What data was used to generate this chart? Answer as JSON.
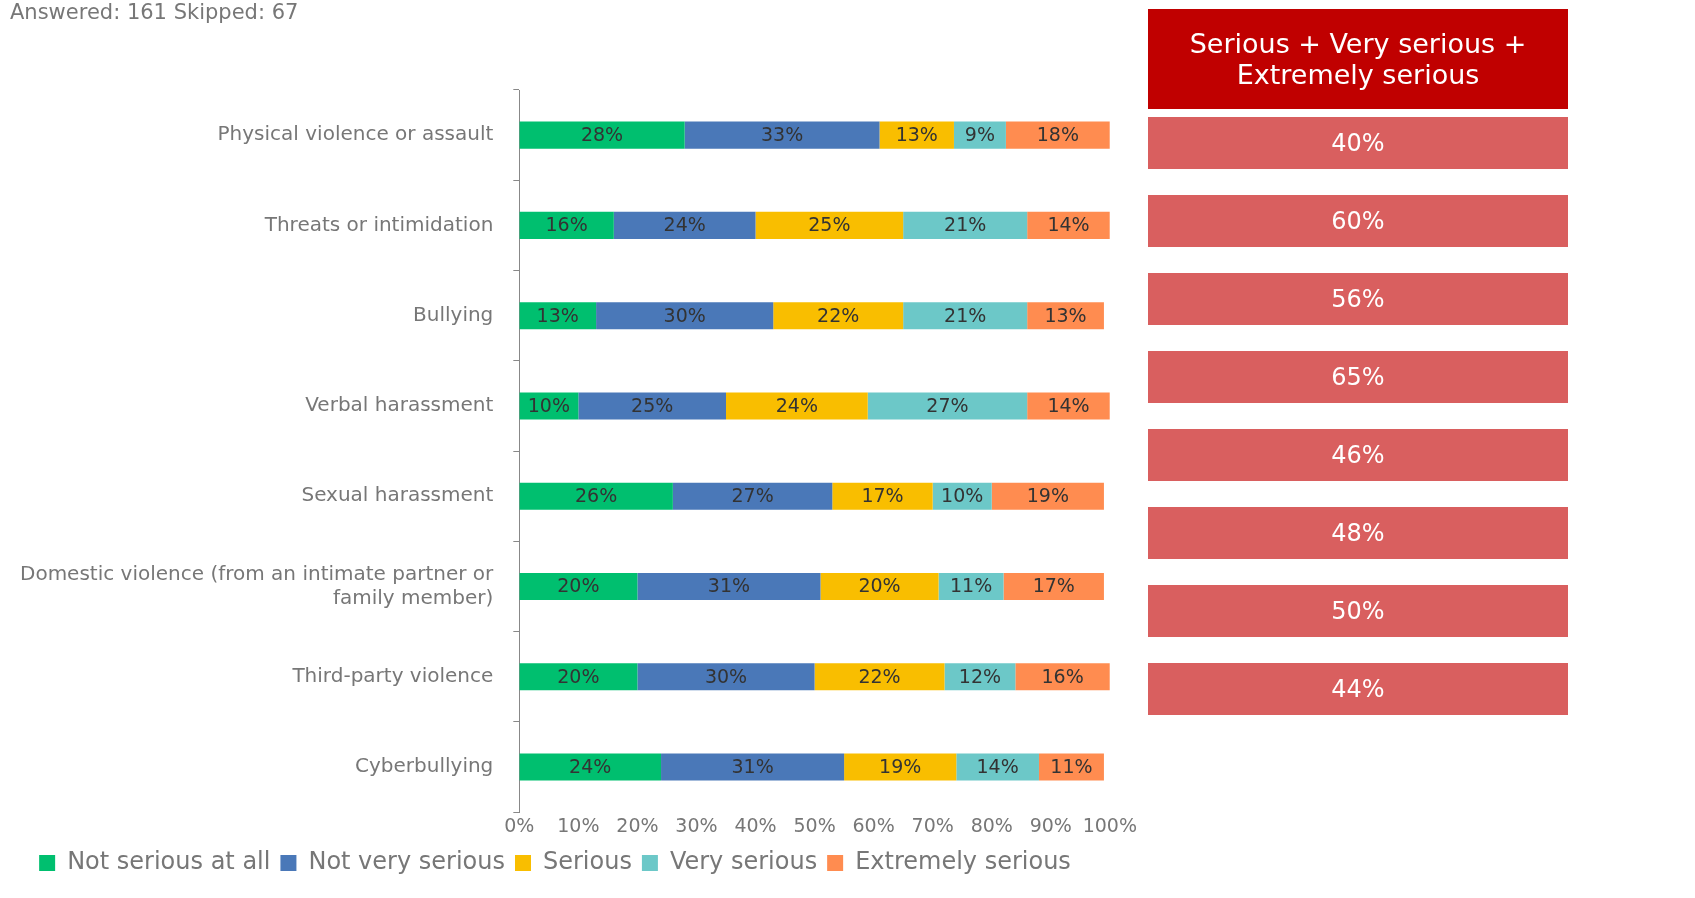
{
  "chart_data": [
    {
      "type": "bar",
      "orientation": "horizontal",
      "stacked": true,
      "subtitle": "Answered: 161   Skipped: 67",
      "categories": [
        "Physical violence or assault",
        "Threats or intimidation",
        "Bullying",
        "Verbal harassment",
        "Sexual harassment",
        "Domestic violence (from an intimate partner or family member)",
        "Third-party violence",
        "Cyberbullying"
      ],
      "series": [
        {
          "name": "Not serious at all",
          "color": "#00bf6f",
          "values": [
            28,
            16,
            13,
            10,
            26,
            20,
            20,
            24
          ],
          "value_labels": [
            "28%",
            "16%",
            "13%",
            "10%",
            "26%",
            "20%",
            "20%",
            "24%"
          ]
        },
        {
          "name": "Not very serious",
          "color": "#4a78b8",
          "values": [
            33,
            24,
            30,
            25,
            27,
            31,
            30,
            31
          ],
          "value_labels": [
            "33%",
            "24%",
            "30%",
            "25%",
            "27%",
            "31%",
            "30%",
            "31%"
          ]
        },
        {
          "name": "Serious",
          "color": "#f9be00",
          "values": [
            12.6,
            25,
            22,
            24,
            17,
            20,
            22,
            19
          ],
          "value_labels": [
            "13%",
            "25%",
            "22%",
            "24%",
            "17%",
            "20%",
            "22%",
            "19%"
          ]
        },
        {
          "name": "Very serious",
          "color": "#6cc8c8",
          "values": [
            8.8,
            21,
            21,
            27,
            10,
            11,
            12,
            14
          ],
          "value_labels": [
            "9%",
            "21%",
            "21%",
            "27%",
            "10%",
            "11%",
            "12%",
            "14%"
          ]
        },
        {
          "name": "Extremely serious",
          "color": "#ff8c50",
          "values": [
            17.6,
            14,
            13,
            14,
            19,
            17,
            16,
            11
          ],
          "value_labels": [
            "18%",
            "14%",
            "13%",
            "14%",
            "19%",
            "17%",
            "16%",
            "11%"
          ]
        }
      ],
      "xlim": [
        0,
        100
      ],
      "xticks": [
        {
          "value": 0,
          "label": "0%"
        },
        {
          "value": 10,
          "label": "10%"
        },
        {
          "value": 20,
          "label": "20%"
        },
        {
          "value": 30,
          "label": "30%"
        },
        {
          "value": 40,
          "label": "40%"
        },
        {
          "value": 50,
          "label": "50%"
        },
        {
          "value": 60,
          "label": "60%"
        },
        {
          "value": 70,
          "label": "70%"
        },
        {
          "value": 80,
          "label": "80%"
        },
        {
          "value": 90,
          "label": "90%"
        },
        {
          "value": 100,
          "label": "100%"
        }
      ],
      "grid": false,
      "legend": "bottom"
    },
    {
      "type": "other",
      "title": "Serious + Very serious + Extremely serious",
      "annotations": [
        "40%",
        "60%",
        "56%",
        "65%",
        "46%",
        "48%",
        "50%",
        "44%"
      ]
    }
  ]
}
